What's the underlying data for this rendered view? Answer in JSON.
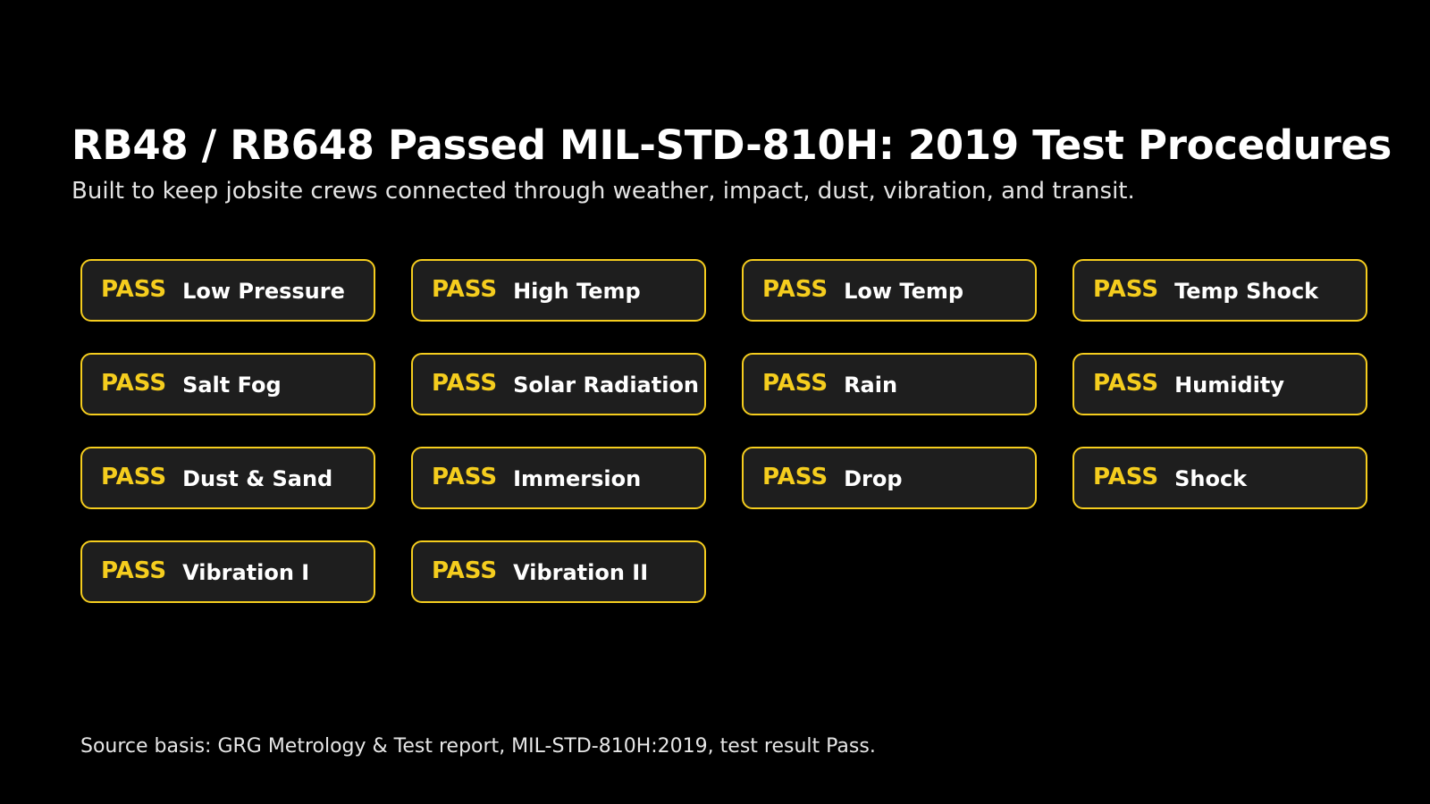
{
  "header": {
    "title": "RB48 / RB648 Passed MIL-STD-810H: 2019 Test Procedures",
    "subtitle": "Built to keep jobsite crews connected through weather, impact, dust, vibration, and transit."
  },
  "tests": [
    {
      "status": "PASS",
      "name": "Low Pressure"
    },
    {
      "status": "PASS",
      "name": "High Temp"
    },
    {
      "status": "PASS",
      "name": "Low Temp"
    },
    {
      "status": "PASS",
      "name": "Temp Shock"
    },
    {
      "status": "PASS",
      "name": "Salt Fog"
    },
    {
      "status": "PASS",
      "name": "Solar Radiation"
    },
    {
      "status": "PASS",
      "name": "Rain"
    },
    {
      "status": "PASS",
      "name": "Humidity"
    },
    {
      "status": "PASS",
      "name": "Dust & Sand"
    },
    {
      "status": "PASS",
      "name": "Immersion"
    },
    {
      "status": "PASS",
      "name": "Drop"
    },
    {
      "status": "PASS",
      "name": "Shock"
    },
    {
      "status": "PASS",
      "name": "Vibration I"
    },
    {
      "status": "PASS",
      "name": "Vibration II"
    }
  ],
  "footer": {
    "source": "Source basis: GRG Metrology & Test report, MIL-STD-810H:2019, test result Pass."
  },
  "colors": {
    "background": "#000000",
    "accent": "#f5cd1e",
    "badge_fill": "#1e1e1e",
    "text": "#ffffff"
  }
}
